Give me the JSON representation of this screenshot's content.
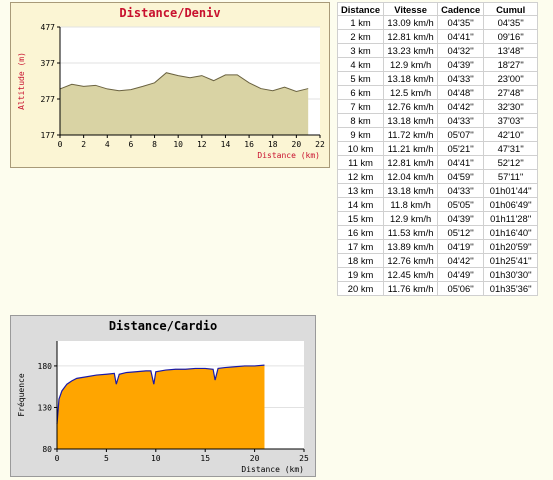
{
  "deniv_chart": {
    "chart_data": {
      "type": "area",
      "title": "Distance/Deniv",
      "xlabel": "Distance (km)",
      "ylabel": "Altitude (m)",
      "xlim": [
        0,
        22
      ],
      "ylim": [
        177,
        477
      ],
      "xticks": [
        "0",
        "2",
        "4",
        "6",
        "8",
        "10",
        "12",
        "14",
        "16",
        "18",
        "20",
        "22"
      ],
      "yticks": [
        "177",
        "277",
        "377",
        "477"
      ],
      "x": [
        0,
        1,
        2,
        3,
        4,
        5,
        6,
        7,
        8,
        9,
        10,
        11,
        12,
        13,
        14,
        15,
        16,
        17,
        18,
        19,
        20,
        21
      ],
      "values": [
        305,
        318,
        312,
        315,
        305,
        300,
        303,
        312,
        322,
        350,
        342,
        336,
        342,
        328,
        344,
        344,
        322,
        306,
        300,
        310,
        298,
        306
      ],
      "colors": {
        "fill": "#d9d3a4",
        "line": "#6a6240",
        "title": "#c8102e",
        "plot_bg": "#ffffff"
      }
    }
  },
  "cardio_chart": {
    "chart_data": {
      "type": "area",
      "title": "Distance/Cardio",
      "xlabel": "Distance (km)",
      "ylabel": "Fréquence",
      "xlim": [
        0,
        25
      ],
      "ylim": [
        80,
        210
      ],
      "xticks": [
        "0",
        "5",
        "10",
        "15",
        "20",
        "25"
      ],
      "yticks": [
        "80",
        "130",
        "180"
      ],
      "x": [
        0,
        0.2,
        0.5,
        1,
        1.5,
        2,
        3,
        4,
        5,
        5.8,
        6,
        6.3,
        7,
        8,
        9,
        9.5,
        9.8,
        10,
        11,
        12,
        13,
        14,
        15,
        15.8,
        16,
        16.3,
        17,
        18,
        19,
        20,
        21
      ],
      "values": [
        110,
        140,
        150,
        158,
        162,
        165,
        167,
        169,
        170,
        171,
        158,
        170,
        172,
        173,
        174,
        174,
        158,
        173,
        175,
        176,
        176,
        177,
        177,
        176,
        163,
        177,
        178,
        179,
        180,
        180,
        181
      ],
      "colors": {
        "fill": "#ffa500",
        "line": "#1a1aa8",
        "plot_bg": "#ffffff"
      }
    }
  },
  "splits": {
    "headers": [
      "Distance",
      "Vitesse",
      "Cadence",
      "Cumul"
    ],
    "rows": [
      [
        "1 km",
        "13.09 km/h",
        "04'35''",
        "04'35''"
      ],
      [
        "2 km",
        "12.81 km/h",
        "04'41''",
        "09'16''"
      ],
      [
        "3 km",
        "13.23 km/h",
        "04'32''",
        "13'48''"
      ],
      [
        "4 km",
        "12.9 km/h",
        "04'39''",
        "18'27''"
      ],
      [
        "5 km",
        "13.18 km/h",
        "04'33''",
        "23'00''"
      ],
      [
        "6 km",
        "12.5 km/h",
        "04'48''",
        "27'48''"
      ],
      [
        "7 km",
        "12.76 km/h",
        "04'42''",
        "32'30''"
      ],
      [
        "8 km",
        "13.18 km/h",
        "04'33''",
        "37'03''"
      ],
      [
        "9 km",
        "11.72 km/h",
        "05'07''",
        "42'10''"
      ],
      [
        "10 km",
        "11.21 km/h",
        "05'21''",
        "47'31''"
      ],
      [
        "11 km",
        "12.81 km/h",
        "04'41''",
        "52'12''"
      ],
      [
        "12 km",
        "12.04 km/h",
        "04'59''",
        "57'11''"
      ],
      [
        "13 km",
        "13.18 km/h",
        "04'33''",
        "01h01'44''"
      ],
      [
        "14 km",
        "11.8 km/h",
        "05'05''",
        "01h06'49''"
      ],
      [
        "15 km",
        "12.9 km/h",
        "04'39''",
        "01h11'28''"
      ],
      [
        "16 km",
        "11.53 km/h",
        "05'12''",
        "01h16'40''"
      ],
      [
        "17 km",
        "13.89 km/h",
        "04'19''",
        "01h20'59''"
      ],
      [
        "18 km",
        "12.76 km/h",
        "04'42''",
        "01h25'41''"
      ],
      [
        "19 km",
        "12.45 km/h",
        "04'49''",
        "01h30'30''"
      ],
      [
        "20 km",
        "11.76 km/h",
        "05'06''",
        "01h35'36''"
      ]
    ]
  }
}
